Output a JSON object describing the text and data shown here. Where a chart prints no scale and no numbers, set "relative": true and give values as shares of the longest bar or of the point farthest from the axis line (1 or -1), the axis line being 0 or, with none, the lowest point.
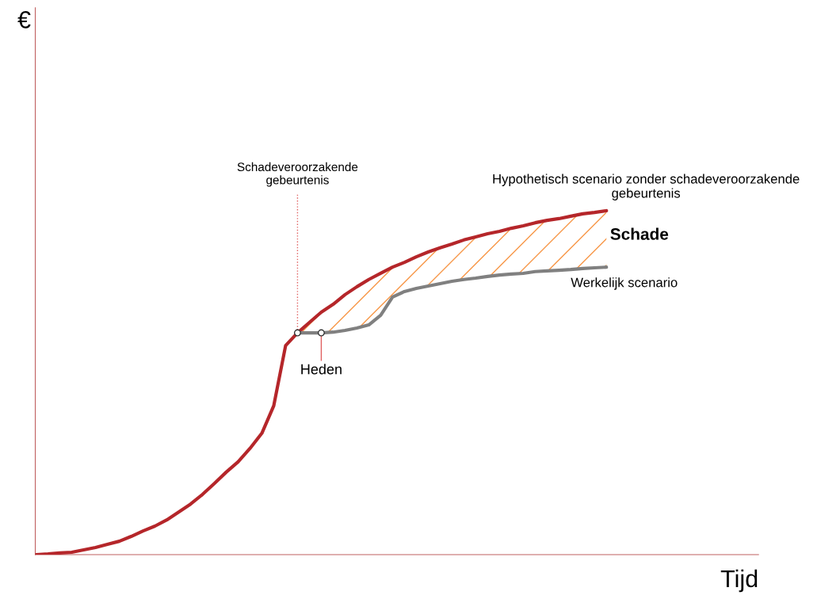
{
  "chart_data": {
    "type": "line",
    "relative": true,
    "xlabel": "Tijd",
    "marker": "none",
    "line_style": "solid",
    "categories": [
      null,
      null,
      null,
      null,
      null,
      null,
      null,
      null,
      null,
      null,
      null,
      null,
      null,
      null,
      null,
      null,
      null,
      null,
      null,
      null,
      null,
      null,
      null,
      null,
      null,
      null,
      null,
      null,
      null,
      null,
      null,
      null,
      null,
      null,
      null,
      null,
      null,
      null,
      null,
      null,
      null,
      null,
      null,
      null,
      null,
      null,
      null,
      null,
      null
    ],
    "series": [
      {
        "name": "Hypothetisch scenario zonder schadeveroorzakende\ngebeurtenis",
        "color": "#b5262a",
        "values": [
          0,
          0.002,
          0.005,
          0.007,
          0.014,
          0.021,
          0.03,
          0.039,
          0.053,
          0.069,
          0.083,
          0.101,
          0.124,
          0.147,
          0.175,
          0.207,
          0.24,
          0.27,
          0.309,
          0.353,
          0.433,
          0.608,
          0.645,
          0.675,
          0.705,
          0.728,
          0.756,
          0.779,
          0.8,
          0.818,
          0.836,
          0.85,
          0.866,
          0.88,
          0.892,
          0.903,
          0.915,
          0.924,
          0.933,
          0.94,
          0.949,
          0.956,
          0.965,
          0.972,
          0.977,
          0.984,
          0.991,
          0.995,
          1.0
        ]
      },
      {
        "name": "Werkelijk scenario",
        "color": "#808080",
        "values": [
          null,
          null,
          null,
          null,
          null,
          null,
          null,
          null,
          null,
          null,
          null,
          null,
          null,
          null,
          null,
          null,
          null,
          null,
          null,
          null,
          null,
          null,
          0.645,
          0.645,
          0.645,
          0.647,
          0.652,
          0.659,
          0.668,
          0.696,
          0.749,
          0.765,
          0.774,
          0.781,
          0.788,
          0.795,
          0.8,
          0.804,
          0.809,
          0.813,
          0.816,
          0.818,
          0.823,
          0.825,
          0.827,
          0.829,
          0.832,
          0.834,
          0.836
        ]
      }
    ],
    "annotations": [
      "Schadeveroorzakende\ngebeurtenis",
      "Heden",
      "Schade",
      "€"
    ]
  }
}
